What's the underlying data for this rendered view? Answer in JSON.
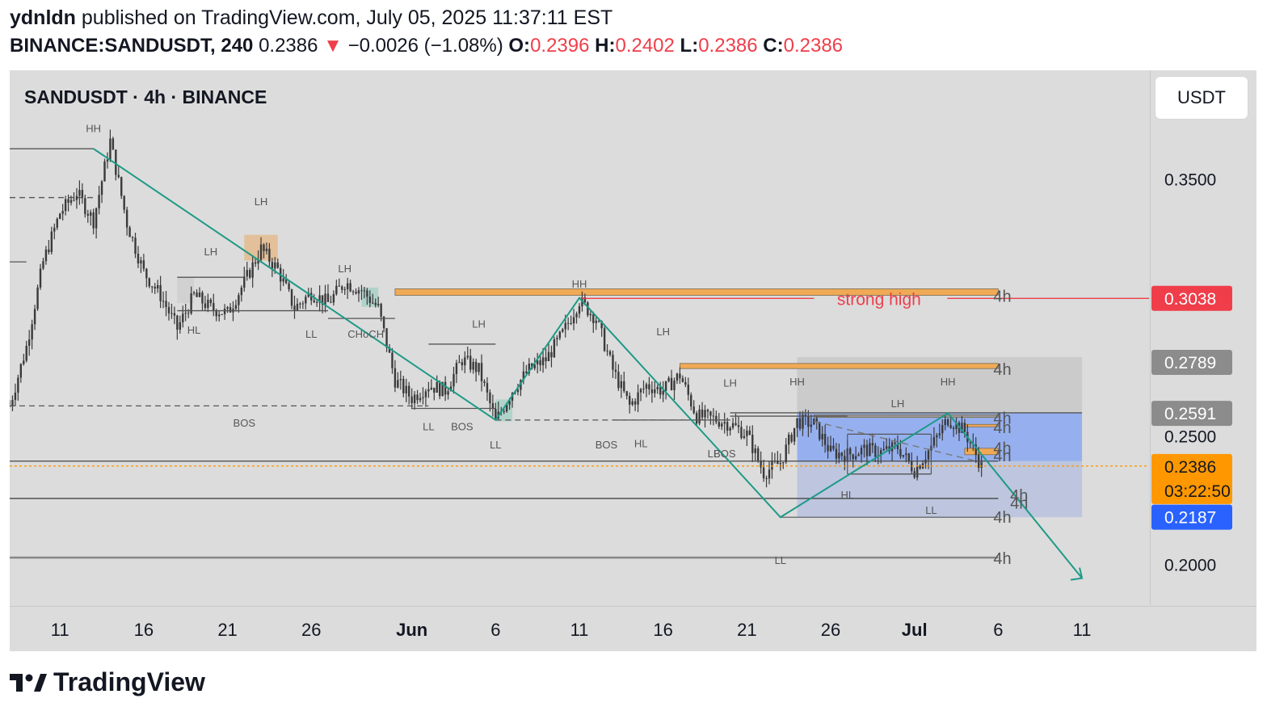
{
  "header": {
    "author": "ydnldn",
    "published_text": "published on TradingView.com, July 05, 2025 11:37:11 EST",
    "symbol_interval": "BINANCE:SANDUSDT, 240",
    "last_price": "0.2386",
    "down_arrow": "▼",
    "change": "−0.0026 (−1.08%)",
    "o_label": "O:",
    "o_value": "0.2396",
    "h_label": "H:",
    "h_value": "0.2402",
    "l_label": "L:",
    "l_value": "0.2386",
    "c_label": "C:",
    "c_value": "0.2386"
  },
  "legend": {
    "title": "SANDUSDT · 4h · BINANCE"
  },
  "currency_button": "USDT",
  "footer": {
    "brand": "TradingView",
    "logo_icon": "tradingview-logo-icon"
  },
  "colors": {
    "chart_bg": "#dcdcdc",
    "candle": "#3a3a3a",
    "zigzag": "#1e9a86",
    "orange_zone": "#f0a955",
    "blue_zone": "#7fa2f5",
    "red": "#ef3e4a",
    "last_price_bg": "#ff9800",
    "blue_label": "#2962ff",
    "gray_label": "#8c8c8c"
  },
  "chart_data": {
    "type": "candlestick",
    "title": "SANDUSDT · 4h · BINANCE",
    "interval": "4h",
    "exchange": "BINANCE",
    "currency": "USDT",
    "ylim": [
      0.1845,
      0.3925
    ],
    "y_ticks": [
      "0.3500",
      "0.2500",
      "0.2000"
    ],
    "x_ticks": [
      "11",
      "16",
      "21",
      "26",
      "Jun",
      "6",
      "11",
      "16",
      "21",
      "26",
      "Jul",
      "6",
      "11"
    ],
    "x_tick_dates": [
      "2025-05-11",
      "2025-05-16",
      "2025-05-21",
      "2025-05-26",
      "2025-06-01",
      "2025-06-06",
      "2025-06-11",
      "2025-06-16",
      "2025-06-21",
      "2025-06-26",
      "2025-07-01",
      "2025-07-06",
      "2025-07-11"
    ],
    "x_range_dates": [
      "2025-05-08",
      "2025-07-15"
    ],
    "grid": false,
    "ohlc_last": {
      "open": 0.2396,
      "high": 0.2402,
      "low": 0.2386,
      "close": 0.2386,
      "change": -0.0026,
      "change_pct": -1.08
    },
    "path_points": [
      [
        "2025-05-08",
        0.262
      ],
      [
        "2025-05-09",
        0.285
      ],
      [
        "2025-05-10",
        0.318
      ],
      [
        "2025-05-11",
        0.337
      ],
      [
        "2025-05-12",
        0.345
      ],
      [
        "2025-05-13",
        0.334
      ],
      [
        "2025-05-14",
        0.365
      ],
      [
        "2025-05-15",
        0.333
      ],
      [
        "2025-05-16",
        0.314
      ],
      [
        "2025-05-17",
        0.305
      ],
      [
        "2025-05-18",
        0.292
      ],
      [
        "2025-05-19",
        0.305
      ],
      [
        "2025-05-20",
        0.3
      ],
      [
        "2025-05-21",
        0.298
      ],
      [
        "2025-05-22",
        0.31
      ],
      [
        "2025-05-23",
        0.323
      ],
      [
        "2025-05-24",
        0.315
      ],
      [
        "2025-05-25",
        0.3
      ],
      [
        "2025-05-26",
        0.306
      ],
      [
        "2025-05-27",
        0.302
      ],
      [
        "2025-05-28",
        0.31
      ],
      [
        "2025-05-29",
        0.307
      ],
      [
        "2025-05-30",
        0.3
      ],
      [
        "2025-05-31",
        0.272
      ],
      [
        "2025-06-01",
        0.265
      ],
      [
        "2025-06-02",
        0.27
      ],
      [
        "2025-06-03",
        0.268
      ],
      [
        "2025-06-04",
        0.28
      ],
      [
        "2025-06-05",
        0.276
      ],
      [
        "2025-06-06",
        0.256
      ],
      [
        "2025-06-07",
        0.268
      ],
      [
        "2025-06-08",
        0.276
      ],
      [
        "2025-06-09",
        0.28
      ],
      [
        "2025-06-10",
        0.29
      ],
      [
        "2025-06-11",
        0.303
      ],
      [
        "2025-06-12",
        0.296
      ],
      [
        "2025-06-13",
        0.276
      ],
      [
        "2025-06-14",
        0.262
      ],
      [
        "2025-06-15",
        0.27
      ],
      [
        "2025-06-16",
        0.268
      ],
      [
        "2025-06-17",
        0.274
      ],
      [
        "2025-06-18",
        0.258
      ],
      [
        "2025-06-19",
        0.257
      ],
      [
        "2025-06-20",
        0.255
      ],
      [
        "2025-06-21",
        0.251
      ],
      [
        "2025-06-22",
        0.236
      ],
      [
        "2025-06-23",
        0.24
      ],
      [
        "2025-06-24",
        0.256
      ],
      [
        "2025-06-25",
        0.255
      ],
      [
        "2025-06-26",
        0.244
      ],
      [
        "2025-06-27",
        0.243
      ],
      [
        "2025-06-28",
        0.245
      ],
      [
        "2025-06-29",
        0.244
      ],
      [
        "2025-06-30",
        0.246
      ],
      [
        "2025-07-01",
        0.237
      ],
      [
        "2025-07-02",
        0.246
      ],
      [
        "2025-07-03",
        0.257
      ],
      [
        "2025-07-04",
        0.252
      ],
      [
        "2025-07-05",
        0.2386
      ]
    ],
    "zones": [
      {
        "name": "4h",
        "kind": "orange",
        "from": "2025-05-31",
        "to": "2025-07-06",
        "y1": 0.3075,
        "y2": 0.305
      },
      {
        "name": "4h",
        "kind": "orange",
        "from": "2025-06-17",
        "to": "2025-07-06",
        "y1": 0.2785,
        "y2": 0.2765
      },
      {
        "name": "4h",
        "kind": "gray",
        "from": "2025-06-25",
        "to": "2025-07-06",
        "y1": 0.2585,
        "y2": 0.2575
      },
      {
        "name": "4h",
        "kind": "orange",
        "from": "2025-07-04",
        "to": "2025-07-06",
        "y1": 0.2548,
        "y2": 0.254
      },
      {
        "name": "4h",
        "kind": "orange",
        "from": "2025-07-04",
        "to": "2025-07-06",
        "y1": 0.2455,
        "y2": 0.243
      }
    ],
    "levels": [
      {
        "label": "strong high",
        "value": 0.3038,
        "color": "#ef3e4a"
      }
    ],
    "price_labels": [
      {
        "value": "0.3038",
        "price": 0.3038,
        "bg": "#ef3e4a"
      },
      {
        "value": "0.2789",
        "price": 0.2789,
        "bg": "#8c8c8c"
      },
      {
        "value": "0.2591",
        "price": 0.2591,
        "bg": "#8c8c8c"
      },
      {
        "value": "0.2386",
        "price": 0.2386,
        "bg": "#ff9800",
        "countdown": "03:22:50"
      },
      {
        "value": "0.2187",
        "price": 0.2187,
        "bg": "#2962ff"
      }
    ],
    "annotations": [
      "HH",
      "LH",
      "LH",
      "LH",
      "HL",
      "LL",
      "CHoCH",
      "BOS",
      "LL",
      "BOS",
      "LH",
      "HH",
      "LL",
      "LH",
      "BOS",
      "HL",
      "LH",
      "HH",
      "LH",
      "HH",
      "LL",
      "HL",
      "LL",
      "LL",
      "BOS",
      "4h",
      "4h",
      "4h",
      "4h",
      "4h",
      "4h",
      "4h",
      "4h",
      "strong high"
    ]
  }
}
